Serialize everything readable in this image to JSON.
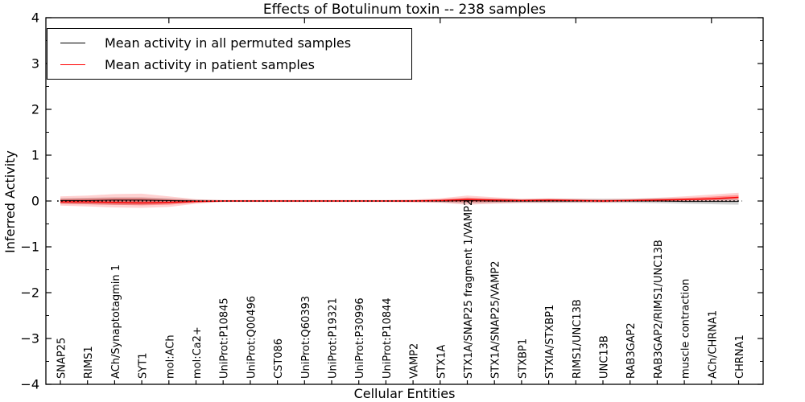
{
  "figure": {
    "background": "#ffffff",
    "frame_color": "#000000"
  },
  "chart_data": {
    "type": "line",
    "title": "Effects of Botulinum toxin -- 238 samples",
    "xlabel": "Cellular Entities",
    "ylabel": "Inferred Activity",
    "ylim": [
      -4,
      4
    ],
    "yticks": [
      -4,
      -3,
      -2,
      -1,
      0,
      1,
      2,
      3,
      4
    ],
    "y_minor_step": 0.5,
    "grid": false,
    "legend_position": "upper left",
    "zero_line": 0,
    "top_ticks_at_categories": [
      5,
      10,
      15,
      20,
      25
    ],
    "categories": [
      "SNAP25",
      "RIMS1",
      "ACh/Synaptotagmin 1",
      "SYT1",
      "mol:ACh",
      "mol:Ca2+",
      "UniProt:P10845",
      "UniProt:Q00496",
      "CST086",
      "UniProt:Q60393",
      "UniProt:P19321",
      "UniProt:P30996",
      "UniProt:P10844",
      "VAMP2",
      "STX1A",
      "STX1A/SNAP25 fragment 1/VAMP2",
      "STX1A/SNAP25/VAMP2",
      "STXBP1",
      "STXIA/STXBP1",
      "RIMS1/UNC13B",
      "UNC13B",
      "RAB3GAP2",
      "RAB3GAP2/RIMS1/UNC13B",
      "muscle contraction",
      "ACh/CHRNA1",
      "CHRNA1"
    ],
    "series": [
      {
        "name": "Mean activity in all permuted samples",
        "color": "#000000",
        "band_color": "rgba(110,110,110,0.30)",
        "values": [
          0.01,
          0.01,
          0.02,
          0.02,
          0.01,
          0,
          0,
          0,
          0,
          0,
          0,
          0,
          0,
          0,
          0,
          0.01,
          0,
          0,
          0,
          0,
          0,
          0,
          0,
          -0.01,
          -0.01,
          -0.01
        ],
        "band_upper": [
          0.06,
          0.07,
          0.08,
          0.08,
          0.06,
          0.03,
          0.02,
          0.02,
          0.02,
          0.02,
          0.02,
          0.02,
          0.02,
          0.02,
          0.03,
          0.06,
          0.05,
          0.04,
          0.05,
          0.05,
          0.05,
          0.05,
          0.06,
          0.06,
          0.06,
          0.05
        ],
        "band_lower": [
          -0.06,
          -0.07,
          -0.08,
          -0.08,
          -0.06,
          -0.03,
          -0.02,
          -0.02,
          -0.02,
          -0.02,
          -0.02,
          -0.02,
          -0.02,
          -0.02,
          -0.03,
          -0.05,
          -0.04,
          -0.04,
          -0.04,
          -0.04,
          -0.04,
          -0.04,
          -0.05,
          -0.06,
          -0.07,
          -0.08
        ]
      },
      {
        "name": "Mean activity in patient samples",
        "color": "#ff0000",
        "band_color": "rgba(255,0,0,0.18)",
        "band_inner_color": "rgba(255,0,0,0.30)",
        "values": [
          -0.02,
          -0.02,
          -0.03,
          -0.04,
          -0.03,
          -0.01,
          0,
          0,
          0,
          0,
          0,
          0,
          0,
          0,
          0.01,
          0.03,
          0.02,
          0.01,
          0.02,
          0.01,
          0,
          0.01,
          0.02,
          0.03,
          0.05,
          0.08
        ],
        "band_upper": [
          0.1,
          0.12,
          0.15,
          0.16,
          0.1,
          0.04,
          0.02,
          0.02,
          0.02,
          0.02,
          0.02,
          0.02,
          0.02,
          0.03,
          0.06,
          0.12,
          0.08,
          0.05,
          0.06,
          0.05,
          0.04,
          0.05,
          0.07,
          0.1,
          0.14,
          0.18
        ],
        "band_lower": [
          -0.1,
          -0.12,
          -0.14,
          -0.15,
          -0.13,
          -0.06,
          -0.02,
          -0.02,
          -0.02,
          -0.02,
          -0.02,
          -0.02,
          -0.02,
          -0.03,
          -0.04,
          -0.08,
          -0.06,
          -0.04,
          -0.04,
          -0.03,
          -0.03,
          -0.02,
          -0.02,
          -0.01,
          -0.01,
          0.01
        ]
      }
    ]
  }
}
